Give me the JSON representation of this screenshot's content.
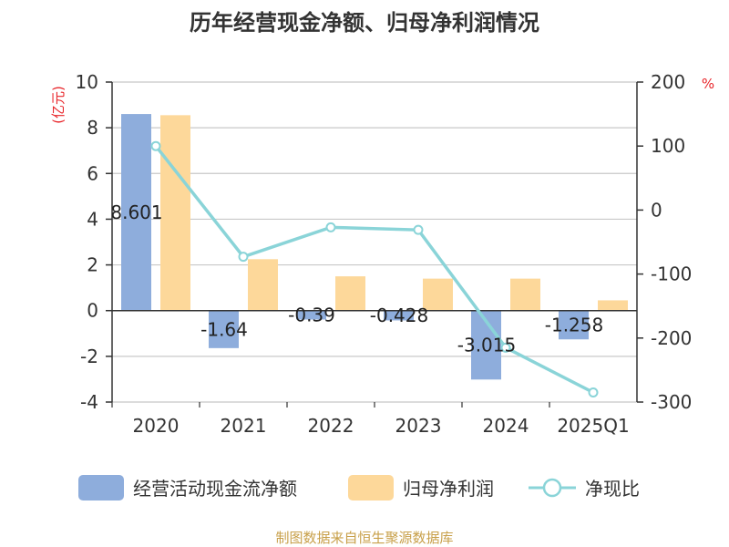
{
  "chart_data": {
    "type": "bar",
    "title": "历年经营现金净额、归母净利润情况",
    "categories": [
      "2020",
      "2021",
      "2022",
      "2023",
      "2024",
      "2025Q1"
    ],
    "left_axis": {
      "unit": "(亿元)",
      "ylim": [
        -4,
        10
      ],
      "ticks": [
        -4,
        -2,
        0,
        2,
        4,
        6,
        8,
        10
      ]
    },
    "right_axis": {
      "unit": "%",
      "ylim": [
        -300,
        200
      ],
      "ticks": [
        -300,
        -200,
        -100,
        0,
        100,
        200
      ]
    },
    "series": [
      {
        "name": "经营活动现金流净额",
        "type": "bar",
        "axis": "left",
        "color": "#8eaddc",
        "values": [
          8.601,
          -1.64,
          -0.39,
          -0.428,
          -3.015,
          -1.258
        ],
        "labels": [
          "8.601",
          "-1.64",
          "-0.39",
          "-0.428",
          "-3.015",
          "-1.258"
        ]
      },
      {
        "name": "归母净利润",
        "type": "bar",
        "axis": "left",
        "color": "#fdd89a",
        "values": [
          8.55,
          2.25,
          1.5,
          1.4,
          1.4,
          0.45
        ]
      },
      {
        "name": "净现比",
        "type": "line",
        "axis": "right",
        "color": "#8ad4d8",
        "values": [
          100,
          -73,
          -27,
          -31,
          -215,
          -285
        ]
      }
    ],
    "grid": true,
    "legend": "bottom-center"
  },
  "source": "制图数据来自恒生聚源数据库"
}
